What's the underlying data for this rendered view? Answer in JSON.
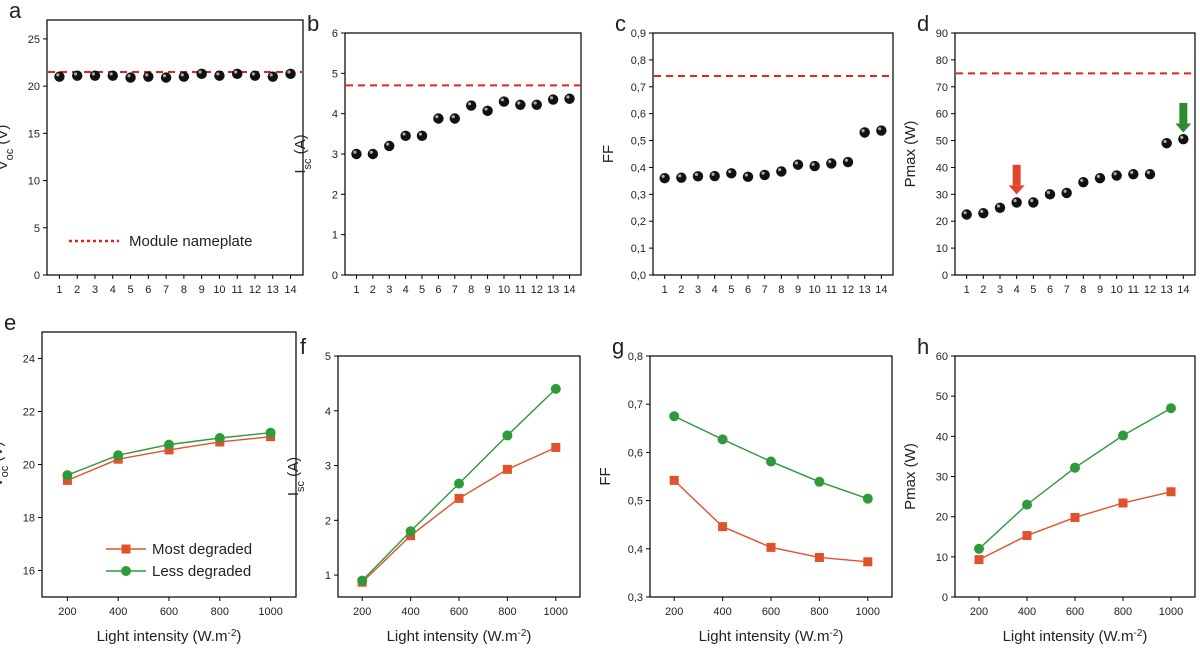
{
  "chart_data": [
    {
      "panel": "a",
      "type": "scatter",
      "ylabel": "V",
      "ylabel_sub": "oc",
      "ylabel_unit": "(V)",
      "xlabel": "",
      "x": [
        1,
        2,
        3,
        4,
        5,
        6,
        7,
        8,
        9,
        10,
        11,
        12,
        13,
        14
      ],
      "xlim": [
        0.3,
        14.7
      ],
      "ylim": [
        0,
        27
      ],
      "yticks": [
        "0",
        "5",
        "10",
        "15",
        "20",
        "25"
      ],
      "ytick_values": [
        0,
        5,
        10,
        15,
        20,
        25
      ],
      "series": [
        {
          "values": [
            21.0,
            21.1,
            21.1,
            21.1,
            20.9,
            21.0,
            20.9,
            21.0,
            21.3,
            21.1,
            21.3,
            21.1,
            21.0,
            21.3
          ]
        }
      ],
      "reference_line": {
        "value": 21.5,
        "color": "#e8201b"
      },
      "legend": {
        "label": "Module nameplate",
        "position": "bottom-center"
      }
    },
    {
      "panel": "b",
      "type": "scatter",
      "ylabel": "I",
      "ylabel_sub": "sc",
      "ylabel_unit": "(A)",
      "xlabel": "",
      "x": [
        1,
        2,
        3,
        4,
        5,
        6,
        7,
        8,
        9,
        10,
        11,
        12,
        13,
        14
      ],
      "xlim": [
        0.3,
        14.7
      ],
      "ylim": [
        0,
        6
      ],
      "yticks": [
        "0",
        "1",
        "2",
        "3",
        "4",
        "5",
        "6"
      ],
      "ytick_values": [
        0,
        1,
        2,
        3,
        4,
        5,
        6
      ],
      "series": [
        {
          "values": [
            3.0,
            3.0,
            3.2,
            3.45,
            3.45,
            3.88,
            3.88,
            4.2,
            4.07,
            4.3,
            4.22,
            4.22,
            4.35,
            4.37
          ]
        }
      ],
      "reference_line": {
        "value": 4.7,
        "color": "#e8201b"
      }
    },
    {
      "panel": "c",
      "type": "scatter",
      "ylabel": "FF",
      "ylabel_sub": "",
      "ylabel_unit": "",
      "xlabel": "",
      "x": [
        1,
        2,
        3,
        4,
        5,
        6,
        7,
        8,
        9,
        10,
        11,
        12,
        13,
        14
      ],
      "xlim": [
        0.3,
        14.7
      ],
      "ylim": [
        0,
        0.9
      ],
      "yticks": [
        "0,0",
        "0,1",
        "0,2",
        "0,3",
        "0,4",
        "0,5",
        "0,6",
        "0,7",
        "0,8",
        "0,9"
      ],
      "ytick_values": [
        0,
        0.1,
        0.2,
        0.3,
        0.4,
        0.5,
        0.6,
        0.7,
        0.8,
        0.9
      ],
      "series": [
        {
          "values": [
            0.36,
            0.362,
            0.367,
            0.368,
            0.378,
            0.365,
            0.372,
            0.385,
            0.41,
            0.405,
            0.415,
            0.42,
            0.53,
            0.537
          ]
        }
      ],
      "reference_line": {
        "value": 0.74,
        "color": "#e8201b"
      }
    },
    {
      "panel": "d",
      "type": "scatter",
      "ylabel": "Pmax (W)",
      "ylabel_sub": "",
      "ylabel_unit": "",
      "xlabel": "",
      "x": [
        1,
        2,
        3,
        4,
        5,
        6,
        7,
        8,
        9,
        10,
        11,
        12,
        13,
        14
      ],
      "xlim": [
        0.3,
        14.7
      ],
      "ylim": [
        0,
        90
      ],
      "yticks": [
        "0",
        "10",
        "20",
        "30",
        "40",
        "50",
        "60",
        "70",
        "80",
        "90"
      ],
      "ytick_values": [
        0,
        10,
        20,
        30,
        40,
        50,
        60,
        70,
        80,
        90
      ],
      "series": [
        {
          "values": [
            22.5,
            23.0,
            25.0,
            27.0,
            27.0,
            30.0,
            30.5,
            34.5,
            36.0,
            37.0,
            37.5,
            37.5,
            49.0,
            50.5
          ]
        }
      ],
      "reference_line": {
        "value": 75,
        "color": "#e8201b"
      },
      "arrows": [
        {
          "x": 4,
          "color": "#e0452a",
          "icon": "down-arrow-icon"
        },
        {
          "x": 14,
          "color": "#2e8b30",
          "icon": "down-arrow-icon"
        }
      ]
    },
    {
      "panel": "e",
      "type": "line",
      "ylabel": "V",
      "ylabel_sub": "oc",
      "ylabel_unit": "(V)",
      "xlabel": "Light intensity (W.m",
      "xlabel_sup": "-2",
      "xlabel_end": ")",
      "x": [
        200,
        400,
        600,
        800,
        1000
      ],
      "xlim": [
        100,
        1100
      ],
      "ylim": [
        15,
        25
      ],
      "yticks": [
        "16",
        "18",
        "20",
        "22",
        "24"
      ],
      "ytick_values": [
        16,
        18,
        20,
        22,
        24
      ],
      "xticks": [
        "200",
        "400",
        "600",
        "800",
        "1000"
      ],
      "series": [
        {
          "name": "Most degraded",
          "color": "#e0522b",
          "marker": "square",
          "values": [
            19.4,
            20.2,
            20.55,
            20.85,
            21.05
          ]
        },
        {
          "name": "Less degraded",
          "color": "#2e9a3a",
          "marker": "circle",
          "values": [
            19.6,
            20.35,
            20.75,
            21.0,
            21.2
          ]
        }
      ],
      "legend": {
        "position": "bottom-right"
      }
    },
    {
      "panel": "f",
      "type": "line",
      "ylabel": "I",
      "ylabel_sub": "sc",
      "ylabel_unit": "(A)",
      "xlabel": "Light intensity (W.m",
      "xlabel_sup": "-2",
      "xlabel_end": ")",
      "x": [
        200,
        400,
        600,
        800,
        1000
      ],
      "xlim": [
        100,
        1100
      ],
      "ylim": [
        0.6,
        5
      ],
      "yticks": [
        "1",
        "2",
        "3",
        "4",
        "5"
      ],
      "ytick_values": [
        1,
        2,
        3,
        4,
        5
      ],
      "xticks": [
        "200",
        "400",
        "600",
        "800",
        "1000"
      ],
      "series": [
        {
          "name": "Most degraded",
          "color": "#e0522b",
          "marker": "square",
          "values": [
            0.87,
            1.72,
            2.4,
            2.93,
            3.33
          ]
        },
        {
          "name": "Less degraded",
          "color": "#2e9a3a",
          "marker": "circle",
          "values": [
            0.9,
            1.8,
            2.67,
            3.55,
            4.4
          ]
        }
      ]
    },
    {
      "panel": "g",
      "type": "line",
      "ylabel": "FF",
      "ylabel_sub": "",
      "ylabel_unit": "",
      "xlabel": "Light intensity (W.m",
      "xlabel_sup": "-2",
      "xlabel_end": ")",
      "x": [
        200,
        400,
        600,
        800,
        1000
      ],
      "xlim": [
        100,
        1100
      ],
      "ylim": [
        0.3,
        0.8
      ],
      "yticks": [
        "0,3",
        "0,4",
        "0,5",
        "0,6",
        "0,7",
        "0,8"
      ],
      "ytick_values": [
        0.3,
        0.4,
        0.5,
        0.6,
        0.7,
        0.8
      ],
      "xticks": [
        "200",
        "400",
        "600",
        "800",
        "1000"
      ],
      "series": [
        {
          "name": "Most degraded",
          "color": "#e0522b",
          "marker": "square",
          "values": [
            0.542,
            0.446,
            0.403,
            0.382,
            0.373
          ]
        },
        {
          "name": "Less degraded",
          "color": "#2e9a3a",
          "marker": "circle",
          "values": [
            0.675,
            0.627,
            0.581,
            0.539,
            0.504
          ]
        }
      ]
    },
    {
      "panel": "h",
      "type": "line",
      "ylabel": "Pmax (W)",
      "ylabel_sub": "",
      "ylabel_unit": "",
      "xlabel": "Light intensity (W.m",
      "xlabel_sup": "-2",
      "xlabel_end": ")",
      "x": [
        200,
        400,
        600,
        800,
        1000
      ],
      "xlim": [
        100,
        1100
      ],
      "ylim": [
        0,
        60
      ],
      "yticks": [
        "0",
        "10",
        "20",
        "30",
        "40",
        "50",
        "60"
      ],
      "ytick_values": [
        0,
        10,
        20,
        30,
        40,
        50,
        60
      ],
      "xticks": [
        "200",
        "400",
        "600",
        "800",
        "1000"
      ],
      "series": [
        {
          "name": "Most degraded",
          "color": "#e0522b",
          "marker": "square",
          "values": [
            9.3,
            15.3,
            19.8,
            23.4,
            26.2
          ]
        },
        {
          "name": "Less degraded",
          "color": "#2e9a3a",
          "marker": "circle",
          "values": [
            12.0,
            23.0,
            32.2,
            40.2,
            47.0
          ]
        }
      ]
    }
  ]
}
